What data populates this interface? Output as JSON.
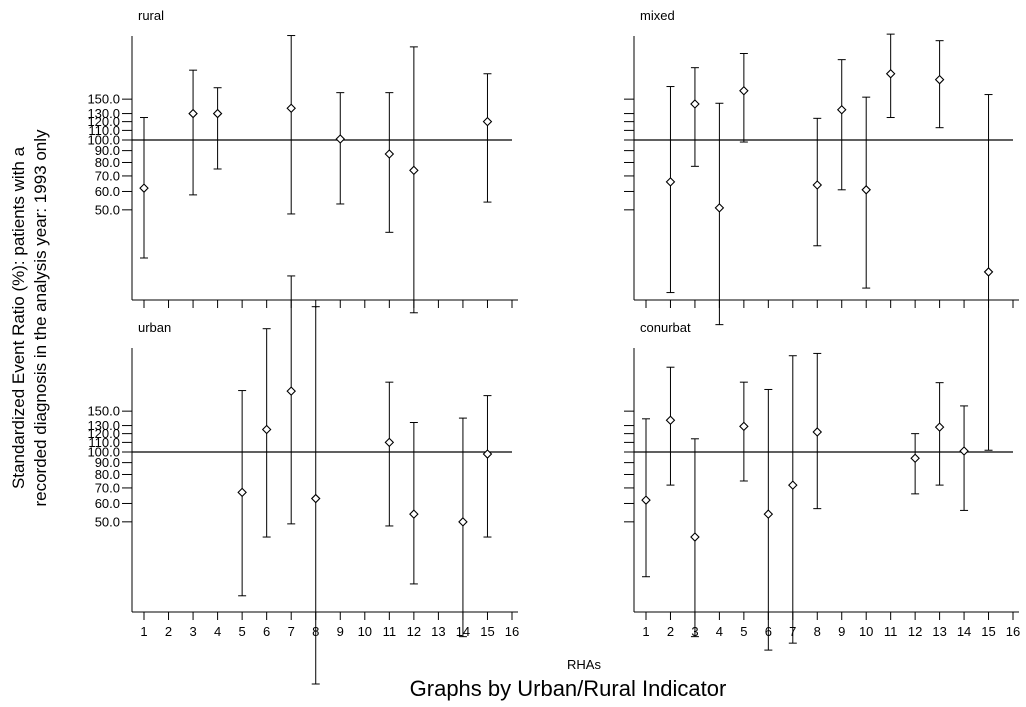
{
  "chart_data": {
    "type": "scatter",
    "subtype": "point-with-error-bars",
    "ylabel_lines": [
      "Standardized Event Ratio (%): patients with a",
      "recorded diagnosis in the analysis year: 1993 only"
    ],
    "xlabel": "RHAs",
    "note": "Graphs by Urban/Rural Indicator",
    "x_ticks": [
      1,
      2,
      3,
      4,
      5,
      6,
      7,
      8,
      9,
      10,
      11,
      12,
      13,
      14,
      15,
      16
    ],
    "y_tick_labels": [
      "150.0",
      "130.0",
      "120.0",
      "110.0",
      "100.0",
      "90.0",
      "80.0",
      "70.0",
      "60.0",
      "50.0"
    ],
    "y_scale": "log",
    "reference_line": 100,
    "panels": [
      {
        "title": "rural",
        "show_y_labels": true,
        "show_x_labels": false,
        "points": [
          {
            "x": 1,
            "y": 62,
            "lo": 31,
            "hi": 125
          },
          {
            "x": 3,
            "y": 130,
            "lo": 58,
            "hi": 200
          },
          {
            "x": 4,
            "y": 130,
            "lo": 75,
            "hi": 168
          },
          {
            "x": 7,
            "y": 137,
            "lo": 48,
            "hi": 282
          },
          {
            "x": 9,
            "y": 101,
            "lo": 53,
            "hi": 160
          },
          {
            "x": 11,
            "y": 87,
            "lo": 40,
            "hi": 160
          },
          {
            "x": 12,
            "y": 74,
            "lo": 18,
            "hi": 252
          },
          {
            "x": 15,
            "y": 120,
            "lo": 54,
            "hi": 193
          }
        ]
      },
      {
        "title": "mixed",
        "show_y_labels": false,
        "show_x_labels": false,
        "points": [
          {
            "x": 2,
            "y": 66,
            "lo": 22,
            "hi": 170
          },
          {
            "x": 3,
            "y": 143,
            "lo": 77,
            "hi": 205
          },
          {
            "x": 4,
            "y": 51,
            "lo": 16,
            "hi": 144
          },
          {
            "x": 5,
            "y": 163,
            "lo": 98,
            "hi": 236
          },
          {
            "x": 8,
            "y": 64,
            "lo": 35,
            "hi": 124
          },
          {
            "x": 9,
            "y": 135,
            "lo": 61,
            "hi": 222
          },
          {
            "x": 10,
            "y": 61,
            "lo": 23,
            "hi": 153
          },
          {
            "x": 11,
            "y": 193,
            "lo": 125,
            "hi": 286
          },
          {
            "x": 13,
            "y": 182,
            "lo": 113,
            "hi": 268
          },
          {
            "x": 15,
            "y": 27,
            "lo": 4.6,
            "hi": 157
          }
        ]
      },
      {
        "title": "urban",
        "show_y_labels": true,
        "show_x_labels": true,
        "points": [
          {
            "x": 5,
            "y": 67,
            "lo": 24,
            "hi": 184
          },
          {
            "x": 6,
            "y": 125,
            "lo": 43,
            "hi": 340
          },
          {
            "x": 7,
            "y": 183,
            "lo": 49,
            "hi": 574
          },
          {
            "x": 8,
            "y": 63,
            "lo": 10,
            "hi": 423
          },
          {
            "x": 11,
            "y": 110,
            "lo": 48,
            "hi": 200
          },
          {
            "x": 12,
            "y": 54,
            "lo": 27,
            "hi": 134
          },
          {
            "x": 14,
            "y": 50,
            "lo": 16,
            "hi": 140
          },
          {
            "x": 15,
            "y": 98,
            "lo": 43,
            "hi": 175
          }
        ]
      },
      {
        "title": "conurbat",
        "show_y_labels": false,
        "show_x_labels": true,
        "points": [
          {
            "x": 1,
            "y": 62,
            "lo": 29,
            "hi": 139
          },
          {
            "x": 2,
            "y": 137,
            "lo": 72,
            "hi": 232
          },
          {
            "x": 3,
            "y": 43,
            "lo": 16,
            "hi": 114
          },
          {
            "x": 5,
            "y": 129,
            "lo": 75,
            "hi": 200
          },
          {
            "x": 6,
            "y": 54,
            "lo": 14,
            "hi": 186
          },
          {
            "x": 7,
            "y": 72,
            "lo": 15,
            "hi": 260
          },
          {
            "x": 8,
            "y": 122,
            "lo": 57,
            "hi": 266
          },
          {
            "x": 12,
            "y": 94,
            "lo": 66,
            "hi": 120
          },
          {
            "x": 13,
            "y": 128,
            "lo": 72,
            "hi": 199
          },
          {
            "x": 14,
            "y": 101,
            "lo": 56,
            "hi": 158
          }
        ]
      }
    ]
  }
}
